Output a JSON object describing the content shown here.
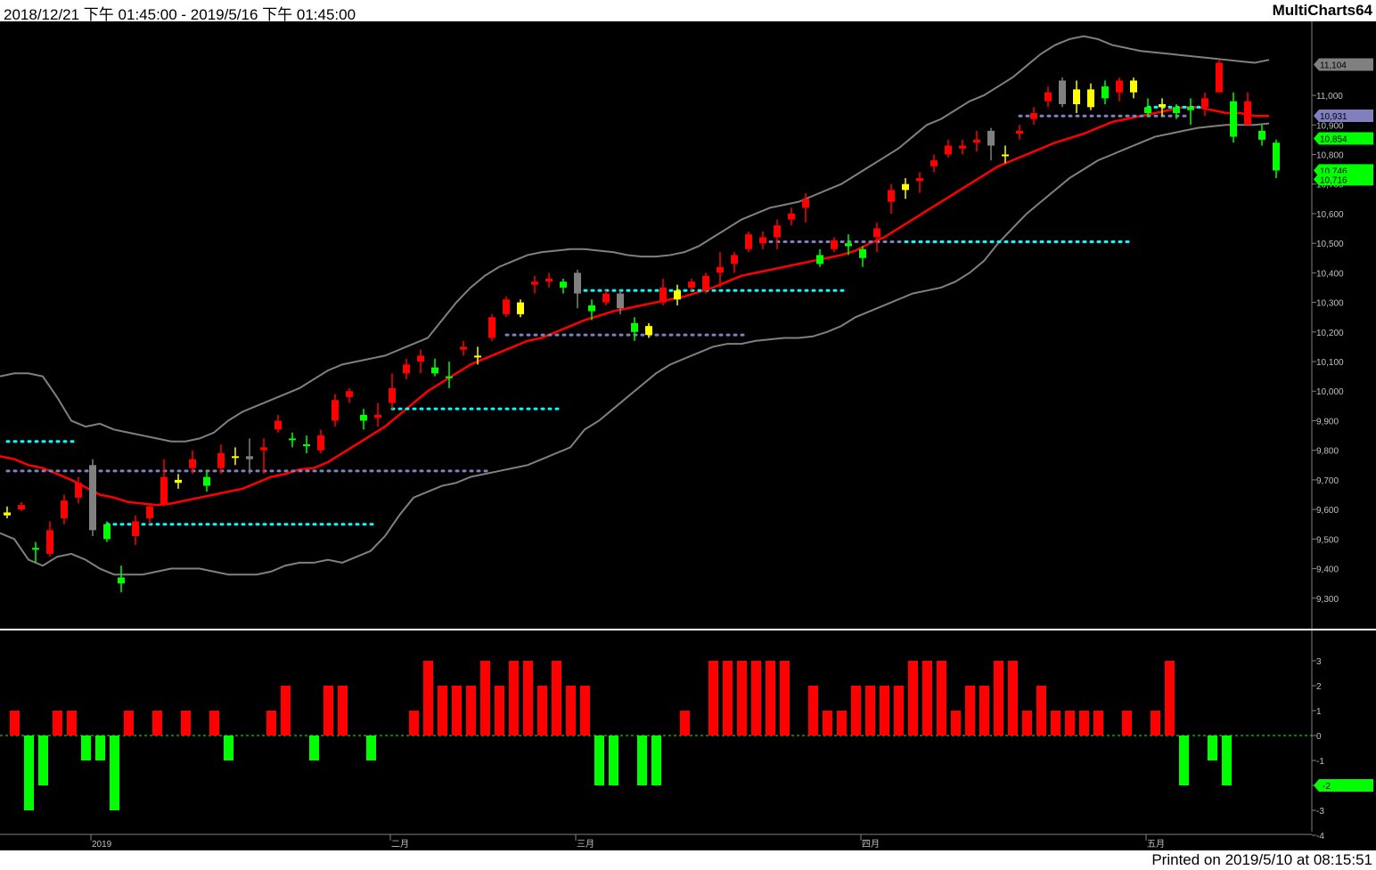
{
  "header": {
    "range": "2018/12/21 下午 01:45:00 - 2019/5/16 下午 01:45:00",
    "brand": "MultiCharts64"
  },
  "footer": {
    "printed": "Printed on 2019/5/10 at 08:15:51"
  },
  "colors": {
    "background": "#000000",
    "up": "#ff0000",
    "down": "#00ff00",
    "neutral_up": "#ffff00",
    "neutral_down": "#808080",
    "ma": "#ff0000",
    "band": "#808080",
    "dot_cyan": "#00ffff",
    "dot_purple": "#8080c0"
  },
  "chart_data": [
    {
      "type": "candlestick",
      "y_ticks": [
        "9,300",
        "9,400",
        "9,500",
        "9,600",
        "9,700",
        "9,800",
        "9,900",
        "10,000",
        "10,100",
        "10,200",
        "10,300",
        "10,400",
        "10,500",
        "10,600",
        "10,700",
        "10,800",
        "10,900",
        "11,000"
      ],
      "ylim": [
        9200,
        11250
      ],
      "price_tags": [
        {
          "label": "11,104",
          "value": 11104,
          "color": "#808080"
        },
        {
          "label": "10,931",
          "value": 10931,
          "color": "#8080c0"
        },
        {
          "label": "10,854",
          "value": 10854,
          "color": "#00ff00"
        },
        {
          "label": "10,746",
          "value": 10746,
          "color": "#00ff00"
        },
        {
          "label": "10,716",
          "value": 10716,
          "color": "#00ff00"
        }
      ],
      "x_labels": [
        "2019",
        "二月",
        "三月",
        "四月",
        "五月"
      ],
      "x_label_bars": [
        6,
        27,
        40,
        60,
        80
      ],
      "candles": [
        [
          9590,
          9610,
          9570,
          9580,
          "y"
        ],
        [
          9600,
          9625,
          9595,
          9615,
          "r"
        ],
        [
          9470,
          9490,
          9420,
          9470,
          "g"
        ],
        [
          9450,
          9560,
          9440,
          9530,
          "r"
        ],
        [
          9570,
          9650,
          9550,
          9630,
          "r"
        ],
        [
          9640,
          9710,
          9620,
          9690,
          "r"
        ],
        [
          9750,
          9770,
          9510,
          9530,
          "n"
        ],
        [
          9550,
          9560,
          9490,
          9500,
          "g"
        ],
        [
          9370,
          9410,
          9320,
          9350,
          "g"
        ],
        [
          9510,
          9580,
          9480,
          9560,
          "r"
        ],
        [
          9570,
          9620,
          9550,
          9610,
          "r"
        ],
        [
          9620,
          9770,
          9610,
          9710,
          "r"
        ],
        [
          9690,
          9720,
          9670,
          9700,
          "y"
        ],
        [
          9740,
          9800,
          9720,
          9770,
          "r"
        ],
        [
          9710,
          9730,
          9660,
          9680,
          "g"
        ],
        [
          9740,
          9820,
          9720,
          9790,
          "r"
        ],
        [
          9780,
          9810,
          9750,
          9780,
          "y"
        ],
        [
          9780,
          9840,
          9720,
          9770,
          "n"
        ],
        [
          9800,
          9840,
          9720,
          9810,
          "r"
        ],
        [
          9870,
          9920,
          9860,
          9900,
          "r"
        ],
        [
          9840,
          9860,
          9810,
          9840,
          "g"
        ],
        [
          9820,
          9850,
          9790,
          9820,
          "g"
        ],
        [
          9800,
          9870,
          9790,
          9850,
          "r"
        ],
        [
          9900,
          9990,
          9880,
          9970,
          "r"
        ],
        [
          9980,
          10010,
          9960,
          10000,
          "r"
        ],
        [
          9920,
          9940,
          9870,
          9900,
          "g"
        ],
        [
          9910,
          9960,
          9880,
          9920,
          "r"
        ],
        [
          9960,
          10060,
          9940,
          10010,
          "r"
        ],
        [
          10060,
          10110,
          10040,
          10090,
          "r"
        ],
        [
          10100,
          10140,
          10060,
          10120,
          "r"
        ],
        [
          10080,
          10110,
          10050,
          10060,
          "g"
        ],
        [
          10050,
          10100,
          10010,
          10050,
          "g"
        ],
        [
          10140,
          10170,
          10120,
          10150,
          "r"
        ],
        [
          10120,
          10150,
          10090,
          10120,
          "y"
        ],
        [
          10180,
          10260,
          10170,
          10250,
          "r"
        ],
        [
          10260,
          10320,
          10250,
          10310,
          "r"
        ],
        [
          10300,
          10310,
          10250,
          10260,
          "y"
        ],
        [
          10360,
          10390,
          10330,
          10370,
          "r"
        ],
        [
          10370,
          10400,
          10350,
          10380,
          "r"
        ],
        [
          10370,
          10380,
          10330,
          10350,
          "g"
        ],
        [
          10400,
          10410,
          10280,
          10330,
          "n"
        ],
        [
          10290,
          10310,
          10240,
          10270,
          "g"
        ],
        [
          10300,
          10340,
          10290,
          10330,
          "r"
        ],
        [
          10330,
          10340,
          10260,
          10280,
          "n"
        ],
        [
          10230,
          10250,
          10170,
          10200,
          "g"
        ],
        [
          10220,
          10230,
          10180,
          10190,
          "y"
        ],
        [
          10300,
          10380,
          10290,
          10350,
          "r"
        ],
        [
          10340,
          10360,
          10290,
          10310,
          "y"
        ],
        [
          10370,
          10380,
          10340,
          10350,
          "r"
        ],
        [
          10340,
          10400,
          10330,
          10390,
          "r"
        ],
        [
          10420,
          10470,
          10350,
          10400,
          "r"
        ],
        [
          10430,
          10470,
          10400,
          10460,
          "r"
        ],
        [
          10480,
          10540,
          10470,
          10530,
          "r"
        ],
        [
          10500,
          10540,
          10480,
          10520,
          "r"
        ],
        [
          10520,
          10580,
          10480,
          10560,
          "r"
        ],
        [
          10580,
          10620,
          10560,
          10600,
          "r"
        ],
        [
          10620,
          10670,
          10570,
          10650,
          "r"
        ],
        [
          10460,
          10480,
          10420,
          10430,
          "g"
        ],
        [
          10480,
          10520,
          10470,
          10510,
          "r"
        ],
        [
          10500,
          10530,
          10460,
          10490,
          "g"
        ],
        [
          10480,
          10490,
          10420,
          10450,
          "g"
        ],
        [
          10520,
          10570,
          10470,
          10550,
          "r"
        ],
        [
          10640,
          10700,
          10600,
          10680,
          "r"
        ],
        [
          10680,
          10720,
          10650,
          10700,
          "y"
        ],
        [
          10710,
          10740,
          10670,
          10720,
          "r"
        ],
        [
          10760,
          10800,
          10740,
          10780,
          "r"
        ],
        [
          10800,
          10850,
          10790,
          10830,
          "r"
        ],
        [
          10820,
          10850,
          10800,
          10830,
          "r"
        ],
        [
          10850,
          10880,
          10810,
          10840,
          "r"
        ],
        [
          10880,
          10890,
          10780,
          10830,
          "n"
        ],
        [
          10800,
          10830,
          10770,
          10800,
          "y"
        ],
        [
          10880,
          10900,
          10850,
          10870,
          "r"
        ],
        [
          10920,
          10960,
          10900,
          10940,
          "r"
        ],
        [
          10980,
          11030,
          10960,
          11010,
          "r"
        ],
        [
          11050,
          11060,
          10960,
          10970,
          "n"
        ],
        [
          11020,
          11050,
          10940,
          10970,
          "y"
        ],
        [
          11020,
          11040,
          10950,
          10960,
          "y"
        ],
        [
          10990,
          11050,
          10970,
          11030,
          "g"
        ],
        [
          11050,
          11060,
          10980,
          11010,
          "r"
        ],
        [
          11050,
          11060,
          10990,
          11010,
          "y"
        ],
        [
          10960,
          10990,
          10930,
          10940,
          "g"
        ],
        [
          10970,
          10990,
          10930,
          10960,
          "y"
        ],
        [
          10960,
          10970,
          10920,
          10940,
          "g"
        ],
        [
          10960,
          10990,
          10900,
          10950,
          "g"
        ],
        [
          10990,
          11010,
          10930,
          10960,
          "r"
        ],
        [
          11110,
          11120,
          11010,
          11010,
          "r"
        ],
        [
          10980,
          11010,
          10840,
          10860,
          "g"
        ],
        [
          10980,
          11010,
          10920,
          10900,
          "r"
        ],
        [
          10880,
          10900,
          10830,
          10850,
          "g"
        ],
        [
          10840,
          10850,
          10720,
          10746,
          "g"
        ]
      ],
      "ma": [
        9780,
        9770,
        9750,
        9740,
        9720,
        9700,
        9675,
        9650,
        9640,
        9625,
        9620,
        9615,
        9620,
        9630,
        9640,
        9650,
        9660,
        9670,
        9690,
        9710,
        9720,
        9735,
        9740,
        9760,
        9790,
        9820,
        9850,
        9880,
        9920,
        9960,
        10000,
        10030,
        10060,
        10090,
        10110,
        10130,
        10150,
        10170,
        10180,
        10200,
        10220,
        10240,
        10255,
        10270,
        10280,
        10290,
        10300,
        10310,
        10320,
        10335,
        10350,
        10370,
        10390,
        10400,
        10410,
        10420,
        10430,
        10440,
        10450,
        10460,
        10475,
        10500,
        10520,
        10550,
        10580,
        10610,
        10640,
        10670,
        10700,
        10730,
        10760,
        10780,
        10800,
        10820,
        10840,
        10855,
        10870,
        10890,
        10910,
        10920,
        10930,
        10940,
        10950,
        10960,
        10960,
        10950,
        10940,
        10940,
        10930,
        10930
      ],
      "upper": [
        10050,
        10060,
        10060,
        10050,
        9980,
        9900,
        9880,
        9890,
        9870,
        9860,
        9850,
        9840,
        9830,
        9830,
        9840,
        9860,
        9900,
        9930,
        9950,
        9970,
        9990,
        10010,
        10040,
        10070,
        10090,
        10100,
        10110,
        10120,
        10140,
        10160,
        10180,
        10240,
        10300,
        10350,
        10390,
        10420,
        10440,
        10460,
        10470,
        10475,
        10480,
        10480,
        10475,
        10470,
        10460,
        10455,
        10455,
        10460,
        10470,
        10490,
        10520,
        10550,
        10580,
        10600,
        10620,
        10630,
        10640,
        10660,
        10680,
        10700,
        10730,
        10760,
        10790,
        10820,
        10860,
        10900,
        10920,
        10950,
        10980,
        11000,
        11030,
        11060,
        11100,
        11140,
        11170,
        11190,
        11200,
        11190,
        11170,
        11160,
        11150,
        11145,
        11140,
        11135,
        11130,
        11125,
        11120,
        11115,
        11110,
        11120
      ],
      "lower": [
        9520,
        9500,
        9430,
        9410,
        9440,
        9450,
        9430,
        9400,
        9380,
        9380,
        9380,
        9390,
        9400,
        9400,
        9400,
        9390,
        9380,
        9380,
        9380,
        9390,
        9410,
        9420,
        9420,
        9430,
        9420,
        9440,
        9460,
        9510,
        9580,
        9640,
        9660,
        9680,
        9690,
        9710,
        9720,
        9730,
        9740,
        9750,
        9770,
        9790,
        9810,
        9870,
        9900,
        9940,
        9980,
        10020,
        10060,
        10090,
        10110,
        10130,
        10150,
        10160,
        10160,
        10170,
        10175,
        10180,
        10180,
        10185,
        10200,
        10220,
        10250,
        10270,
        10290,
        10310,
        10330,
        10340,
        10350,
        10370,
        10400,
        10440,
        10500,
        10550,
        10600,
        10640,
        10680,
        10720,
        10750,
        10780,
        10800,
        10820,
        10840,
        10860,
        10870,
        10880,
        10890,
        10895,
        10900,
        10900,
        10900,
        10905
      ]
    },
    {
      "type": "bar",
      "y_ticks": [
        "3",
        "2",
        "1",
        "0",
        "-1",
        "-2",
        "-3",
        "-4"
      ],
      "ylim": [
        -4,
        3.5
      ],
      "tag": {
        "label": "-2",
        "value": -2,
        "color": "#00ff00"
      },
      "values": [
        1,
        -3,
        -2,
        1,
        1,
        -1,
        -1,
        -3,
        1,
        0,
        1,
        0,
        1,
        0,
        1,
        -1,
        0,
        0,
        1,
        2,
        0,
        -1,
        2,
        2,
        0,
        -1,
        0,
        0,
        1,
        3,
        2,
        2,
        2,
        3,
        2,
        3,
        3,
        2,
        3,
        2,
        2,
        -2,
        -2,
        0,
        -2,
        -2,
        0,
        1,
        0,
        3,
        3,
        3,
        3,
        3,
        3,
        0,
        2,
        1,
        1,
        2,
        2,
        2,
        2,
        3,
        3,
        3,
        1,
        2,
        2,
        3,
        3,
        1,
        2,
        1,
        1,
        1,
        1,
        0,
        1,
        0,
        1,
        3,
        -2,
        0,
        -1,
        -2
      ]
    }
  ]
}
